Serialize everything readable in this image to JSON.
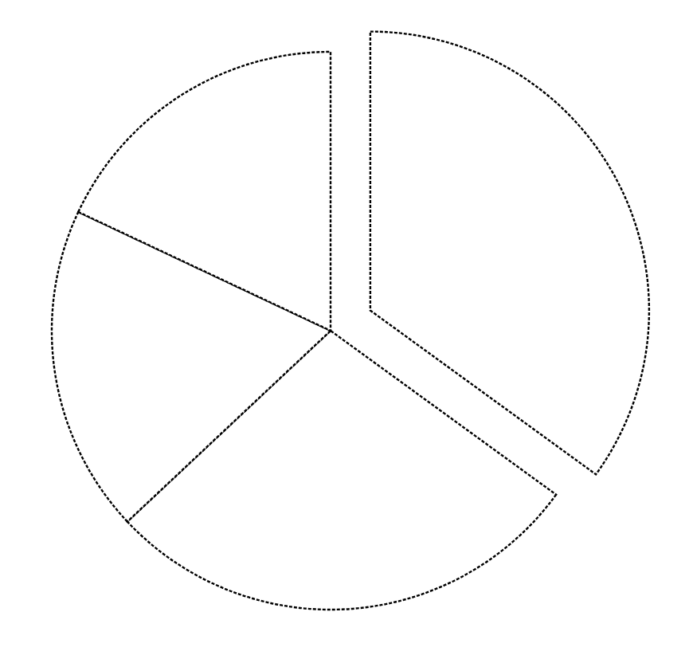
{
  "chart_data": {
    "type": "pie",
    "categories": [
      null,
      null,
      null,
      null
    ],
    "values": [
      35,
      28,
      19,
      18
    ],
    "colors": [
      "#ffffff",
      "#ffffff",
      "#ffffff",
      "#ffffff"
    ]
  }
}
